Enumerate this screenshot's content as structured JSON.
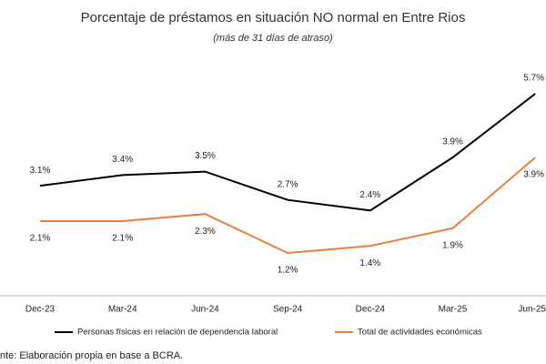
{
  "chart_data": {
    "type": "line",
    "title": "Porcentaje de préstamos en situación NO normal en Entre Rios",
    "subtitle": "(más de 31 días de atraso)",
    "categories": [
      "Dec-23",
      "Mar-24",
      "Jun-24",
      "Sep-24",
      "Dec-24",
      "Mar-25",
      "Jun-25"
    ],
    "series": [
      {
        "name": "Personas físicas en relación de dependencia laboral",
        "color": "#000000",
        "values": [
          3.1,
          3.4,
          3.5,
          2.7,
          2.4,
          3.9,
          5.7
        ],
        "value_labels": [
          "3.1%",
          "3.4%",
          "3.5%",
          "2.7%",
          "2.4%",
          "3.9%",
          "5.7%"
        ]
      },
      {
        "name": "Total de actividades económicas",
        "color": "#e8803e",
        "values": [
          2.1,
          2.1,
          2.3,
          1.2,
          1.4,
          1.9,
          3.9
        ],
        "value_labels": [
          "2.1%",
          "2.1%",
          "2.3%",
          "1.2%",
          "1.4%",
          "1.9%",
          "3.9%"
        ]
      }
    ],
    "source": "nte: Elaboración propia en base a BCRA."
  }
}
